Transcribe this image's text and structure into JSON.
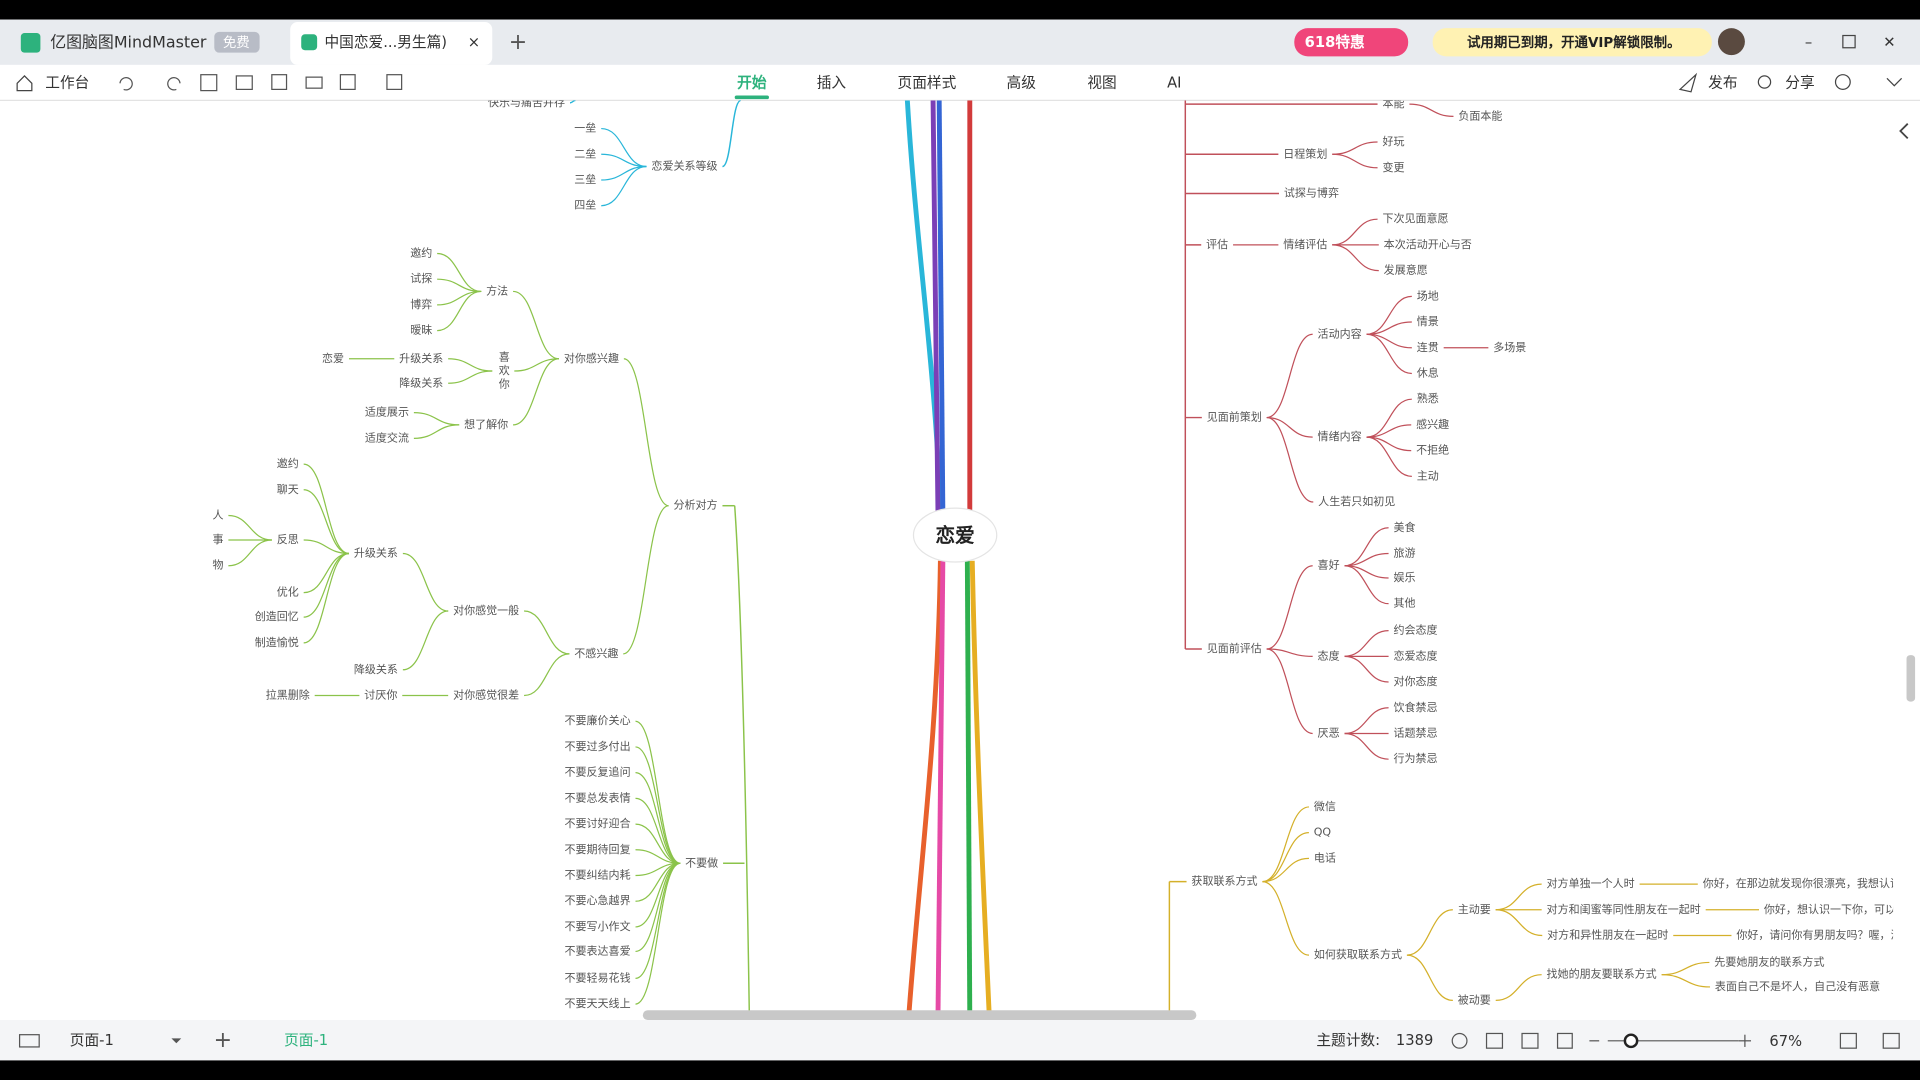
{
  "app": {
    "name": "亿图脑图MindMaster",
    "badge": "免费",
    "tab": "中国恋爱...男生篇)",
    "promo": "618特惠",
    "notice": "试用期已到期，开通VIP解锁限制。"
  },
  "toolbar": {
    "home": "工作台",
    "menu": [
      "开始",
      "插入",
      "页面样式",
      "高级",
      "视图",
      "AI"
    ],
    "publish": "发布",
    "share": "分享"
  },
  "status": {
    "page_select": "页面-1",
    "page_tab": "页面-1",
    "topic_count_label": "主题计数:",
    "topic_count": 1389,
    "zoom": "67%"
  },
  "mindmap": {
    "root": {
      "label": "恋爱",
      "children": [
        {
          "label": "快乐与痛苦并存",
          "children": []
        },
        {
          "label": "恋爱关系等级",
          "children": [
            {
              "label": "一垒"
            },
            {
              "label": "二垒"
            },
            {
              "label": "三垒"
            },
            {
              "label": "四垒"
            }
          ]
        },
        {
          "label": "分析对方",
          "children": [
            {
              "label": "对你感兴趣",
              "children": [
                {
                  "label": "方法",
                  "children": [
                    {
                      "label": "邀约"
                    },
                    {
                      "label": "试探"
                    },
                    {
                      "label": "博弈"
                    },
                    {
                      "label": "暧昧"
                    }
                  ]
                },
                {
                  "label": "喜欢你",
                  "children": [
                    {
                      "label": "升级关系",
                      "children": [
                        {
                          "label": "恋爱"
                        }
                      ]
                    },
                    {
                      "label": "降级关系"
                    }
                  ]
                },
                {
                  "label": "想了解你",
                  "children": [
                    {
                      "label": "适度展示"
                    },
                    {
                      "label": "适度交流"
                    }
                  ]
                }
              ]
            },
            {
              "label": "不感兴趣",
              "children": [
                {
                  "label": "对你感觉一般",
                  "children": [
                    {
                      "label": "升级关系",
                      "children": [
                        {
                          "label": "邀约"
                        },
                        {
                          "label": "聊天"
                        },
                        {
                          "label": "反思",
                          "children": [
                            {
                              "label": "人"
                            },
                            {
                              "label": "事"
                            },
                            {
                              "label": "物"
                            }
                          ]
                        },
                        {
                          "label": "优化"
                        },
                        {
                          "label": "创造回忆"
                        },
                        {
                          "label": "制造愉悦"
                        }
                      ]
                    },
                    {
                      "label": "降级关系"
                    }
                  ]
                },
                {
                  "label": "对你感觉很差",
                  "children": [
                    {
                      "label": "讨厌你",
                      "children": [
                        {
                          "label": "拉黑删除"
                        }
                      ]
                    }
                  ]
                }
              ]
            }
          ]
        },
        {
          "label": "不要做",
          "children": [
            {
              "label": "不要廉价关心"
            },
            {
              "label": "不要过多付出"
            },
            {
              "label": "不要反复追问"
            },
            {
              "label": "不要总发表情"
            },
            {
              "label": "不要讨好迎合"
            },
            {
              "label": "不要期待回复"
            },
            {
              "label": "不要纠结内耗"
            },
            {
              "label": "不要心急越界"
            },
            {
              "label": "不要写小作文"
            },
            {
              "label": "不要表达喜爱"
            },
            {
              "label": "不要轻易花钱"
            },
            {
              "label": "不要天天线上"
            }
          ]
        },
        {
          "label": "本能",
          "children": [
            {
              "label": "负面本能"
            }
          ]
        },
        {
          "label": "日程策划",
          "children": [
            {
              "label": "好玩"
            },
            {
              "label": "变更"
            }
          ]
        },
        {
          "label": "试探与博弈"
        },
        {
          "label": "评估",
          "children": [
            {
              "label": "情绪评估",
              "children": [
                {
                  "label": "下次见面意愿"
                },
                {
                  "label": "本次活动开心与否"
                },
                {
                  "label": "发展意愿"
                }
              ]
            }
          ]
        },
        {
          "label": "见面前策划",
          "children": [
            {
              "label": "活动内容",
              "children": [
                {
                  "label": "场地"
                },
                {
                  "label": "情景"
                },
                {
                  "label": "连贯",
                  "children": [
                    {
                      "label": "多场景"
                    }
                  ]
                },
                {
                  "label": "休息"
                }
              ]
            },
            {
              "label": "情绪内容",
              "children": [
                {
                  "label": "熟悉"
                },
                {
                  "label": "感兴趣"
                },
                {
                  "label": "不拒绝"
                },
                {
                  "label": "主动"
                }
              ]
            },
            {
              "label": "人生若只如初见"
            }
          ]
        },
        {
          "label": "见面前评估",
          "children": [
            {
              "label": "喜好",
              "children": [
                {
                  "label": "美食"
                },
                {
                  "label": "旅游"
                },
                {
                  "label": "娱乐"
                },
                {
                  "label": "其他"
                }
              ]
            },
            {
              "label": "态度",
              "children": [
                {
                  "label": "约会态度"
                },
                {
                  "label": "恋爱态度"
                },
                {
                  "label": "对你态度"
                }
              ]
            },
            {
              "label": "厌恶",
              "children": [
                {
                  "label": "饮食禁忌"
                },
                {
                  "label": "话题禁忌"
                },
                {
                  "label": "行为禁忌"
                }
              ]
            }
          ]
        },
        {
          "label": "获取联系方式",
          "children": [
            {
              "label": "微信"
            },
            {
              "label": "QQ"
            },
            {
              "label": "电话"
            },
            {
              "label": "如何获取联系方式",
              "children": [
                {
                  "label": "主动要",
                  "children": [
                    {
                      "label": "对方单独一个人时",
                      "children": [
                        {
                          "label": "你好，在那边就发现你很漂亮，我想认识一"
                        }
                      ]
                    },
                    {
                      "label": "对方和闺蜜等同性朋友在一起时",
                      "children": [
                        {
                          "label": "你好，想认识一下你，可以加"
                        }
                      ]
                    },
                    {
                      "label": "对方和异性朋友在一起时",
                      "children": [
                        {
                          "label": "你好，请问你有男朋友吗？喔，没有"
                        }
                      ]
                    }
                  ]
                },
                {
                  "label": "被动要",
                  "children": [
                    {
                      "label": "找她的朋友要联系方式",
                      "children": [
                        {
                          "label": "先要她朋友的联系方式"
                        },
                        {
                          "label": "表面自己不是坏人，自己没有恶意"
                        }
                      ]
                    }
                  ]
                }
              ]
            }
          ]
        }
      ]
    }
  }
}
